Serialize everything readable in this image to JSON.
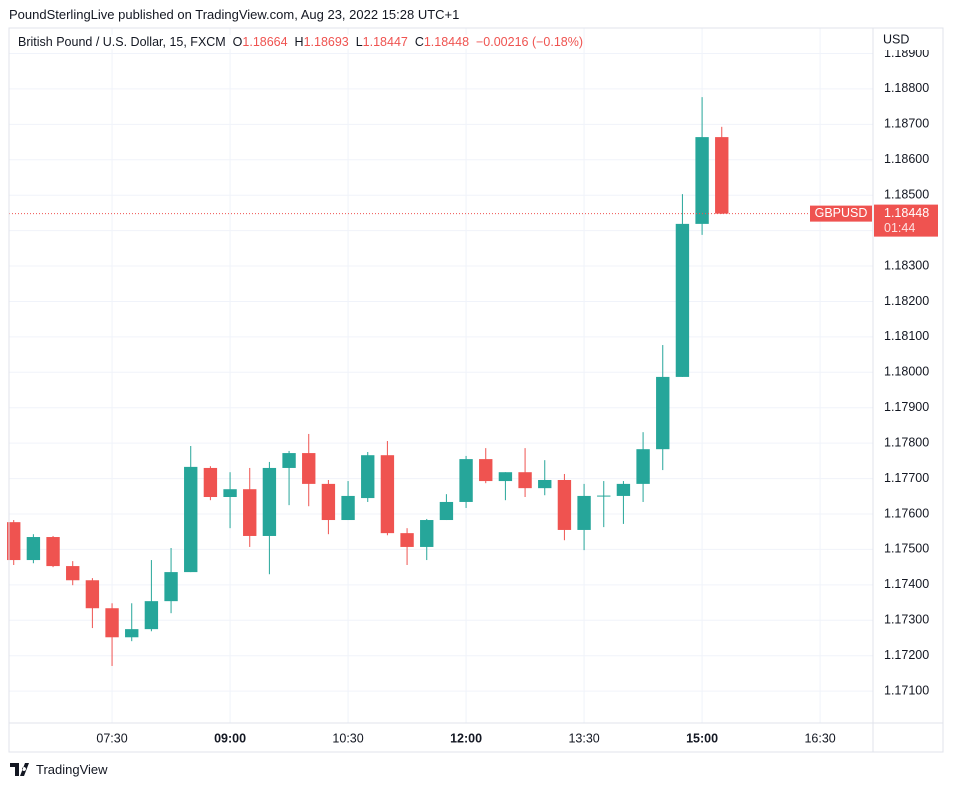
{
  "header": "PoundSterlingLive published on TradingView.com, Aug 23, 2022 15:28 UTC+1",
  "footer": "TradingView",
  "chart_data": {
    "type": "candlestick",
    "title": "British Pound / U.S. Dollar, 15, FXCM",
    "ohlc_labels": [
      "O",
      "H",
      "L",
      "C"
    ],
    "change": "−0.00216 (−0.18%)",
    "symbol": "GBPUSD",
    "countdown": "01:44",
    "currency": "USD",
    "up_color": "#26a69a",
    "down_color": "#ef5350",
    "open": [
      1.17577,
      1.1747,
      1.17535,
      1.17453,
      1.17413,
      1.17334,
      1.17252,
      1.17275,
      1.17354,
      1.17436,
      1.1773,
      1.17648,
      1.1767,
      1.17538,
      1.1773,
      1.17772,
      1.17685,
      1.17583,
      1.17645,
      1.17766,
      1.17546,
      1.17507,
      1.17583,
      1.17634,
      1.17755,
      1.17693,
      1.17718,
      1.17673,
      1.17696,
      1.17555,
      1.17651,
      1.17651,
      1.17685,
      1.17783,
      1.17987,
      1.18419,
      1.18664
    ],
    "high": [
      1.17583,
      1.17543,
      1.17538,
      1.17467,
      1.17419,
      1.17348,
      1.17348,
      1.1747,
      1.17504,
      1.17792,
      1.17735,
      1.17718,
      1.1773,
      1.17747,
      1.17778,
      1.17826,
      1.17696,
      1.17693,
      1.17775,
      1.17806,
      1.1756,
      1.17586,
      1.17656,
      1.17764,
      1.17786,
      1.17718,
      1.17786,
      1.17752,
      1.17713,
      1.17685,
      1.17693,
      1.17693,
      1.17831,
      1.18077,
      1.18503,
      1.18777,
      1.18693
    ],
    "low": [
      1.17456,
      1.17461,
      1.1745,
      1.17399,
      1.17278,
      1.17171,
      1.17241,
      1.17269,
      1.1732,
      1.17436,
      1.17639,
      1.1756,
      1.17507,
      1.1743,
      1.17625,
      1.17622,
      1.17543,
      1.17583,
      1.17634,
      1.1754,
      1.17456,
      1.1747,
      1.17583,
      1.17617,
      1.17687,
      1.17639,
      1.17648,
      1.17653,
      1.17526,
      1.17498,
      1.17563,
      1.17572,
      1.17634,
      1.17724,
      1.17987,
      1.18388,
      1.18447
    ],
    "close": [
      1.1747,
      1.17535,
      1.17453,
      1.17413,
      1.17334,
      1.17252,
      1.17275,
      1.17354,
      1.17436,
      1.17733,
      1.17648,
      1.1767,
      1.17538,
      1.1773,
      1.17772,
      1.17685,
      1.17583,
      1.17651,
      1.17766,
      1.17546,
      1.17507,
      1.17583,
      1.17634,
      1.17755,
      1.17693,
      1.17718,
      1.17673,
      1.17696,
      1.17555,
      1.17651,
      1.17652,
      1.17685,
      1.17783,
      1.17987,
      1.18419,
      1.18664,
      1.18448
    ],
    "ylim": [
      1.1701,
      1.18972
    ],
    "yticks": [
      {
        "value": 1.171,
        "label": "1.17100"
      },
      {
        "value": 1.172,
        "label": "1.17200"
      },
      {
        "value": 1.173,
        "label": "1.17300"
      },
      {
        "value": 1.174,
        "label": "1.17400"
      },
      {
        "value": 1.175,
        "label": "1.17500"
      },
      {
        "value": 1.176,
        "label": "1.17600"
      },
      {
        "value": 1.177,
        "label": "1.17700"
      },
      {
        "value": 1.178,
        "label": "1.17800"
      },
      {
        "value": 1.179,
        "label": "1.17900"
      },
      {
        "value": 1.18,
        "label": "1.18000"
      },
      {
        "value": 1.181,
        "label": "1.18100"
      },
      {
        "value": 1.182,
        "label": "1.18200"
      },
      {
        "value": 1.183,
        "label": "1.18300"
      },
      {
        "value": 1.184,
        "label": "1.18400"
      },
      {
        "value": 1.185,
        "label": "1.18500"
      },
      {
        "value": 1.186,
        "label": "1.18600"
      },
      {
        "value": 1.187,
        "label": "1.18700"
      },
      {
        "value": 1.188,
        "label": "1.18800"
      },
      {
        "value": 1.189,
        "label": "1.18900"
      }
    ],
    "xlim": [
      -0.24,
      43.69
    ],
    "xticks": [
      {
        "value": 5,
        "label": "07:30"
      },
      {
        "value": 11,
        "label": "09:00",
        "bold": true
      },
      {
        "value": 17,
        "label": "10:30"
      },
      {
        "value": 23,
        "label": "12:00",
        "bold": true
      },
      {
        "value": 29,
        "label": "13:30"
      },
      {
        "value": 35,
        "label": "15:00",
        "bold": true
      },
      {
        "value": 41,
        "label": "16:30"
      }
    ],
    "grid": true
  }
}
